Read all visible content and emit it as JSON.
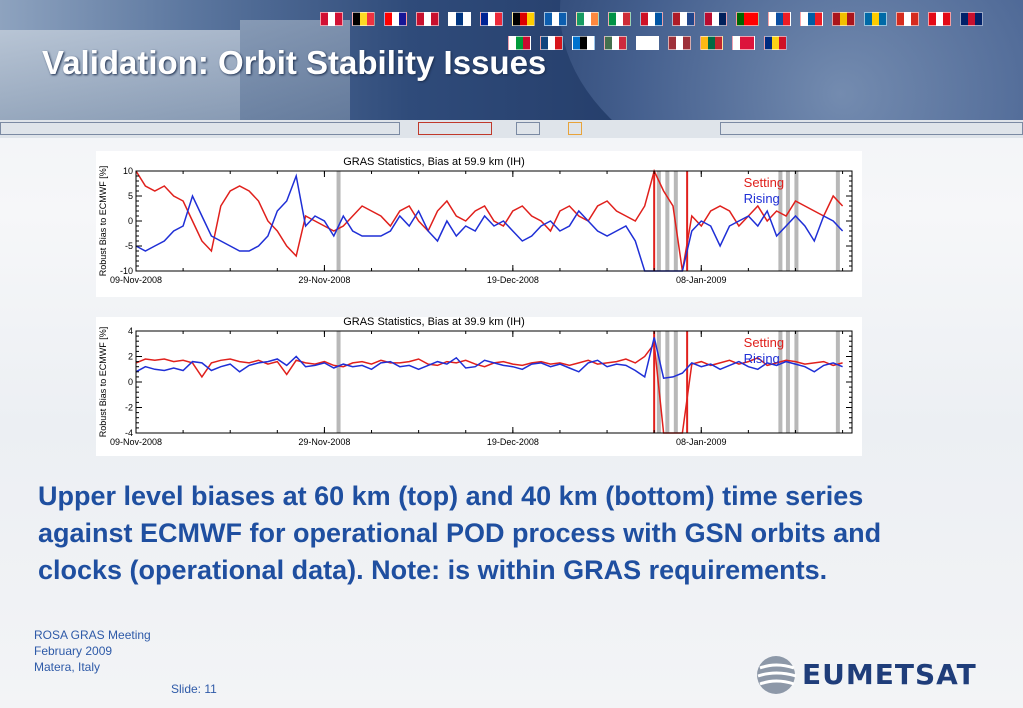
{
  "header": {
    "title": "Validation: Orbit Stability Issues",
    "flag_colors": [
      [
        "#d21034",
        "#ffffff",
        "#d21034"
      ],
      [
        "#000000",
        "#fdda24",
        "#ef3340"
      ],
      [
        "#ff0000",
        "#ffffff",
        "#171796"
      ],
      [
        "#c8102e",
        "#ffffff",
        "#c8102e"
      ],
      [
        "#ffffff",
        "#003580",
        "#ffffff"
      ],
      [
        "#002395",
        "#ffffff",
        "#ed2939"
      ],
      [
        "#000000",
        "#dd0000",
        "#ffce00"
      ],
      [
        "#0d5eaf",
        "#ffffff",
        "#0d5eaf"
      ],
      [
        "#169b62",
        "#ffffff",
        "#ff883e"
      ],
      [
        "#009246",
        "#ffffff",
        "#ce2b37"
      ],
      [
        "#ce1126",
        "#ffffff",
        "#0055a4"
      ],
      [
        "#ae1c28",
        "#ffffff",
        "#21468b"
      ],
      [
        "#ba0c2f",
        "#ffffff",
        "#00205b"
      ],
      [
        "#006600",
        "#ff0000",
        "#ff0000"
      ],
      [
        "#ffffff",
        "#0b4ea2",
        "#ee1c25"
      ],
      [
        "#ffffff",
        "#005da4",
        "#ed1c24"
      ],
      [
        "#aa151b",
        "#f1bf00",
        "#aa151b"
      ],
      [
        "#006aa7",
        "#fecc00",
        "#006aa7"
      ],
      [
        "#d52b1e",
        "#ffffff",
        "#d52b1e"
      ],
      [
        "#e30a17",
        "#ffffff",
        "#e30a17"
      ],
      [
        "#012169",
        "#c8102e",
        "#012169"
      ],
      [
        "#ffffff",
        "#009b3a",
        "#cc092f"
      ],
      [
        "#11457e",
        "#ffffff",
        "#d7141a"
      ],
      [
        "#0072ce",
        "#000000",
        "#ffffff"
      ],
      [
        "#436f4d",
        "#ffffff",
        "#cd2a3e"
      ],
      [
        "#ffffff",
        "#ffffff",
        "#ffffff"
      ],
      [
        "#9e3039",
        "#ffffff",
        "#9e3039"
      ],
      [
        "#fdb913",
        "#006a44",
        "#c1272d"
      ],
      [
        "#ffffff",
        "#dc143c",
        "#dc143c"
      ],
      [
        "#002b7f",
        "#fcd116",
        "#ce1126"
      ]
    ]
  },
  "chart_data": [
    {
      "type": "line",
      "title": "GRAS Statistics, Bias at 59.9 km (IH)",
      "ylabel": "Robust Bias to ECMWF [%]",
      "ylim": [
        -10,
        10
      ],
      "yticks": [
        10,
        5,
        0,
        -5,
        -10
      ],
      "xticks": [
        "09-Nov-2008",
        "29-Nov-2008",
        "19-Dec-2008",
        "08-Jan-2009"
      ],
      "xtick_days": [
        0,
        20,
        40,
        60
      ],
      "xlim_days": [
        0,
        76
      ],
      "legend": [
        "Setting",
        "Rising"
      ],
      "legend_position": "top-right",
      "gray_markers_days": [
        21.5,
        55.5,
        56.4,
        57.3,
        68.4,
        69.2,
        70.1,
        74.5
      ],
      "red_markers_days": [
        55,
        58.5
      ],
      "series": [
        {
          "name": "Setting",
          "color": "#e0201c",
          "x": [
            0,
            1,
            2,
            3,
            4,
            5,
            6,
            7,
            8,
            9,
            10,
            11,
            12,
            13,
            14,
            15,
            16,
            17,
            18,
            19,
            20,
            21,
            22,
            23,
            24,
            25,
            26,
            27,
            28,
            29,
            30,
            31,
            32,
            33,
            34,
            35,
            36,
            37,
            38,
            39,
            40,
            41,
            42,
            43,
            44,
            45,
            46,
            47,
            48,
            49,
            50,
            51,
            52,
            53,
            54,
            55,
            56,
            57,
            58,
            59,
            60,
            61,
            62,
            63,
            64,
            65,
            66,
            67,
            68,
            69,
            70,
            71,
            72,
            73,
            74,
            75
          ],
          "y": [
            10,
            7,
            6,
            7,
            5,
            4,
            0,
            -4,
            -6,
            3,
            6,
            7,
            6,
            4,
            0,
            -2,
            -5,
            -7,
            1,
            0,
            -1,
            -2,
            -1,
            1,
            3,
            2,
            1,
            -1,
            2,
            3,
            0,
            -2,
            2,
            4,
            1,
            0,
            2,
            3,
            0,
            -1,
            2,
            3,
            1,
            0,
            -2,
            2,
            3,
            1,
            0,
            3,
            4,
            2,
            1,
            0,
            3,
            10,
            6,
            3,
            -10,
            1,
            -1,
            2,
            3,
            2,
            -1,
            1,
            3,
            0,
            2,
            1,
            4,
            3,
            2,
            1,
            5,
            3
          ]
        },
        {
          "name": "Rising",
          "color": "#1f2fd6",
          "x": [
            0,
            1,
            2,
            3,
            4,
            5,
            6,
            7,
            8,
            9,
            10,
            11,
            12,
            13,
            14,
            15,
            16,
            17,
            18,
            19,
            20,
            21,
            22,
            23,
            24,
            25,
            26,
            27,
            28,
            29,
            30,
            31,
            32,
            33,
            34,
            35,
            36,
            37,
            38,
            39,
            40,
            41,
            42,
            43,
            44,
            45,
            46,
            47,
            48,
            49,
            50,
            51,
            52,
            53,
            54,
            55,
            56,
            57,
            58,
            59,
            60,
            61,
            62,
            63,
            64,
            65,
            66,
            67,
            68,
            69,
            70,
            71,
            72,
            73,
            74,
            75
          ],
          "y": [
            -5,
            -6,
            -5,
            -4,
            -2,
            -1,
            5,
            1,
            -3,
            -4,
            -5,
            -6,
            -6,
            -5,
            -3,
            2,
            4,
            9,
            -1,
            1,
            0,
            -3,
            1,
            -2,
            -3,
            -3,
            -3,
            -2,
            1,
            -1,
            2,
            -2,
            -4,
            0,
            -3,
            -1,
            -2,
            1,
            -1,
            0,
            -2,
            -4,
            -3,
            -1,
            0,
            -2,
            -1,
            2,
            0,
            -2,
            -3,
            -2,
            -1,
            -4,
            -10,
            -10,
            -10,
            -10,
            -10,
            -2,
            0,
            -1,
            -5,
            -1,
            0,
            1,
            -1,
            2,
            -3,
            -1,
            1,
            -1,
            -4,
            1,
            0,
            -2
          ]
        }
      ]
    },
    {
      "type": "line",
      "title": "GRAS Statistics, Bias at 39.9 km (IH)",
      "ylabel": "Robust Bias to ECMWF [%]",
      "ylim": [
        -4,
        4
      ],
      "yticks": [
        4,
        2,
        0,
        -2,
        -4
      ],
      "xticks": [
        "09-Nov-2008",
        "29-Nov-2008",
        "19-Dec-2008",
        "08-Jan-2009"
      ],
      "xtick_days": [
        0,
        20,
        40,
        60
      ],
      "xlim_days": [
        0,
        76
      ],
      "legend": [
        "Setting",
        "Rising"
      ],
      "legend_position": "top-right",
      "gray_markers_days": [
        21.5,
        55.5,
        56.4,
        57.3,
        68.4,
        69.2,
        70.1,
        74.5
      ],
      "red_markers_days": [
        55,
        58.5
      ],
      "series": [
        {
          "name": "Setting",
          "color": "#e0201c",
          "x": [
            0,
            1,
            2,
            3,
            4,
            5,
            6,
            7,
            8,
            9,
            10,
            11,
            12,
            13,
            14,
            15,
            16,
            17,
            18,
            19,
            20,
            21,
            22,
            23,
            24,
            25,
            26,
            27,
            28,
            29,
            30,
            31,
            32,
            33,
            34,
            35,
            36,
            37,
            38,
            39,
            40,
            41,
            42,
            43,
            44,
            45,
            46,
            47,
            48,
            49,
            50,
            51,
            52,
            53,
            54,
            55,
            56,
            57,
            58,
            59,
            60,
            61,
            62,
            63,
            64,
            65,
            66,
            67,
            68,
            69,
            70,
            71,
            72,
            73,
            74,
            75
          ],
          "y": [
            1.5,
            1.8,
            1.7,
            1.8,
            1.6,
            1.7,
            1.5,
            0.4,
            1.5,
            1.7,
            1.8,
            1.6,
            1.5,
            1.7,
            1.4,
            1.6,
            0.6,
            1.7,
            1.5,
            1.4,
            1.6,
            1.3,
            1.2,
            1.5,
            1.6,
            1.4,
            1.7,
            1.5,
            1.5,
            1.6,
            1.8,
            1.4,
            1.3,
            1.6,
            1.5,
            1.7,
            1.4,
            1.2,
            1.5,
            1.6,
            1.4,
            1.3,
            1.5,
            1.6,
            1.4,
            1.5,
            1.3,
            1.5,
            1.7,
            1.4,
            1.5,
            1.6,
            1.8,
            1.5,
            2.0,
            3.0,
            -4,
            -4,
            -4,
            1.4,
            1.6,
            1.3,
            1.5,
            1.7,
            1.4,
            1.6,
            1.9,
            1.3,
            1.5,
            1.7,
            1.6,
            1.4,
            1.5,
            1.6,
            1.3,
            1.5
          ]
        },
        {
          "name": "Rising",
          "color": "#1f2fd6",
          "x": [
            0,
            1,
            2,
            3,
            4,
            5,
            6,
            7,
            8,
            9,
            10,
            11,
            12,
            13,
            14,
            15,
            16,
            17,
            18,
            19,
            20,
            21,
            22,
            23,
            24,
            25,
            26,
            27,
            28,
            29,
            30,
            31,
            32,
            33,
            34,
            35,
            36,
            37,
            38,
            39,
            40,
            41,
            42,
            43,
            44,
            45,
            46,
            47,
            48,
            49,
            50,
            51,
            52,
            53,
            54,
            55,
            56,
            57,
            58,
            59,
            60,
            61,
            62,
            63,
            64,
            65,
            66,
            67,
            68,
            69,
            70,
            71,
            72,
            73,
            74,
            75
          ],
          "y": [
            0.8,
            1.2,
            1.0,
            0.9,
            1.1,
            0.9,
            1.6,
            1.5,
            0.9,
            1.2,
            1.4,
            0.8,
            1.3,
            1.5,
            1.6,
            1.8,
            1.3,
            2.0,
            1.2,
            1.3,
            1.5,
            1.1,
            1.4,
            1.2,
            1.3,
            1.0,
            1.5,
            1.6,
            1.2,
            1.3,
            1.0,
            1.3,
            1.6,
            1.4,
            1.9,
            1.1,
            1.2,
            1.7,
            1.5,
            1.3,
            1.2,
            1.0,
            1.4,
            1.5,
            1.2,
            1.4,
            1.1,
            0.8,
            1.5,
            1.7,
            1.2,
            1.4,
            1.3,
            0.9,
            0.4,
            3.5,
            0.3,
            0.4,
            0.7,
            1.5,
            1.2,
            1.4,
            1.0,
            1.3,
            1.6,
            1.2,
            1.0,
            1.5,
            1.3,
            1.6,
            1.4,
            1.2,
            0.8,
            1.3,
            1.5,
            1.2
          ]
        }
      ]
    }
  ],
  "caption": "Upper level biases at 60 km (top) and 40 km (bottom) time series against ECMWF for operational POD process with GSN orbits and clocks (operational data). Note: is within GRAS requirements.",
  "footer": {
    "line1": "ROSA GRAS Meeting",
    "line2": "February 2009",
    "line3": "Matera, Italy",
    "slide": "Slide: 11"
  },
  "logo": {
    "text": "EUMETSAT"
  }
}
